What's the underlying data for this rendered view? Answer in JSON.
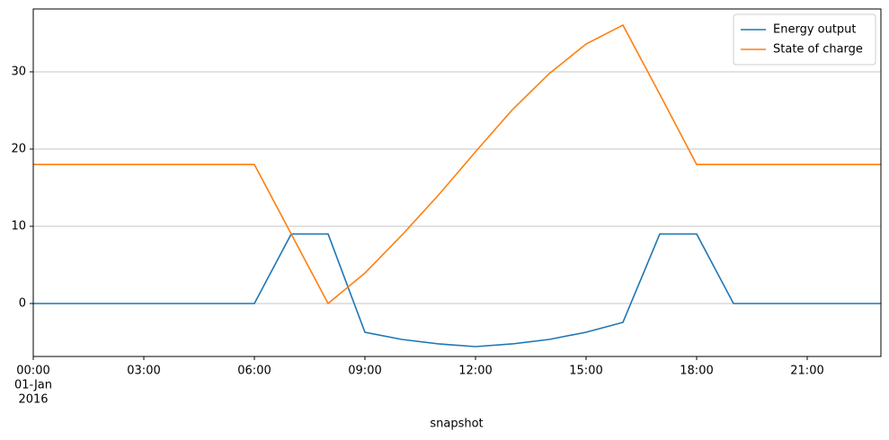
{
  "chart_data": {
    "type": "line",
    "x_label": "snapshot",
    "x": [
      0,
      1,
      2,
      3,
      4,
      5,
      6,
      7,
      8,
      9,
      10,
      11,
      12,
      13,
      14,
      15,
      16,
      17,
      18,
      19,
      20,
      21,
      22,
      23
    ],
    "xlim": [
      0,
      23
    ],
    "xticks": [
      {
        "value": 0,
        "label": "00:00"
      },
      {
        "value": 3,
        "label": "03:00"
      },
      {
        "value": 6,
        "label": "06:00"
      },
      {
        "value": 9,
        "label": "09:00"
      },
      {
        "value": 12,
        "label": "12:00"
      },
      {
        "value": 15,
        "label": "15:00"
      },
      {
        "value": 18,
        "label": "18:00"
      },
      {
        "value": 21,
        "label": "21:00"
      }
    ],
    "x_date_label": "01-Jan",
    "x_year_label": "2016",
    "ylim": [
      -6.86,
      38.14
    ],
    "yticks": [
      0,
      10,
      20,
      30
    ],
    "grid": true,
    "legend": "upper right",
    "series": [
      {
        "name": "Energy output",
        "color": "#1f77b4",
        "values": [
          0,
          0,
          0,
          0,
          0,
          0,
          0,
          9,
          9,
          -3.72,
          -4.65,
          -5.23,
          -5.58,
          -5.23,
          -4.65,
          -3.72,
          -2.44,
          9,
          9,
          0,
          0,
          0,
          0,
          0
        ]
      },
      {
        "name": "State of charge",
        "color": "#ff7f0e",
        "values": [
          18,
          18,
          18,
          18,
          18,
          18,
          18,
          9,
          0,
          3.95,
          8.84,
          14.07,
          19.65,
          25.1,
          29.77,
          33.6,
          36.05,
          27.1,
          18,
          18,
          18,
          18,
          18,
          18
        ]
      }
    ]
  }
}
